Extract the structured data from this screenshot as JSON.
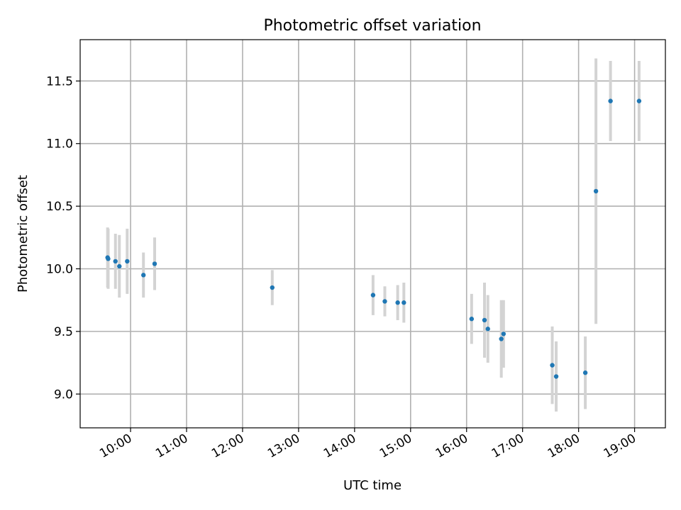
{
  "chart_data": {
    "type": "scatter",
    "title": "Photometric offset variation",
    "xlabel": "UTC time",
    "ylabel": "Photometric offset",
    "xlim_hours": [
      9.1,
      19.55
    ],
    "ylim": [
      8.73,
      11.83
    ],
    "grid": true,
    "x_ticks": [
      {
        "value": 10,
        "label": "10:00"
      },
      {
        "value": 11,
        "label": "11:00"
      },
      {
        "value": 12,
        "label": "12:00"
      },
      {
        "value": 13,
        "label": "13:00"
      },
      {
        "value": 14,
        "label": "14:00"
      },
      {
        "value": 15,
        "label": "15:00"
      },
      {
        "value": 16,
        "label": "16:00"
      },
      {
        "value": 17,
        "label": "17:00"
      },
      {
        "value": 18,
        "label": "18:00"
      },
      {
        "value": 19,
        "label": "19:00"
      }
    ],
    "y_ticks": [
      {
        "value": 9.0,
        "label": "9.0"
      },
      {
        "value": 9.5,
        "label": "9.5"
      },
      {
        "value": 10.0,
        "label": "10.0"
      },
      {
        "value": 10.5,
        "label": "10.5"
      },
      {
        "value": 11.0,
        "label": "11.0"
      },
      {
        "value": 11.5,
        "label": "11.5"
      }
    ],
    "point_color": "#1f77b4",
    "errorbar_color": "#d3d3d3",
    "points": [
      {
        "x": 9.59,
        "y": 10.09,
        "err": 0.24
      },
      {
        "x": 9.6,
        "y": 10.08,
        "err": 0.24
      },
      {
        "x": 9.73,
        "y": 10.06,
        "err": 0.22
      },
      {
        "x": 9.8,
        "y": 10.02,
        "err": 0.25
      },
      {
        "x": 9.94,
        "y": 10.06,
        "err": 0.26
      },
      {
        "x": 10.23,
        "y": 9.95,
        "err": 0.18
      },
      {
        "x": 10.43,
        "y": 10.04,
        "err": 0.21
      },
      {
        "x": 12.53,
        "y": 9.85,
        "err": 0.14
      },
      {
        "x": 14.33,
        "y": 9.79,
        "err": 0.16
      },
      {
        "x": 14.54,
        "y": 9.74,
        "err": 0.12
      },
      {
        "x": 14.77,
        "y": 9.73,
        "err": 0.14
      },
      {
        "x": 14.88,
        "y": 9.73,
        "err": 0.16
      },
      {
        "x": 16.09,
        "y": 9.6,
        "err": 0.2
      },
      {
        "x": 16.32,
        "y": 9.59,
        "err": 0.3
      },
      {
        "x": 16.38,
        "y": 9.52,
        "err": 0.27
      },
      {
        "x": 16.62,
        "y": 9.44,
        "err": 0.31
      },
      {
        "x": 16.66,
        "y": 9.48,
        "err": 0.27
      },
      {
        "x": 17.53,
        "y": 9.23,
        "err": 0.31
      },
      {
        "x": 17.6,
        "y": 9.14,
        "err": 0.28
      },
      {
        "x": 18.12,
        "y": 9.17,
        "err": 0.29
      },
      {
        "x": 18.31,
        "y": 10.62,
        "err": 1.06
      },
      {
        "x": 18.57,
        "y": 11.34,
        "err": 0.32
      },
      {
        "x": 19.08,
        "y": 11.34,
        "err": 0.32
      }
    ]
  }
}
